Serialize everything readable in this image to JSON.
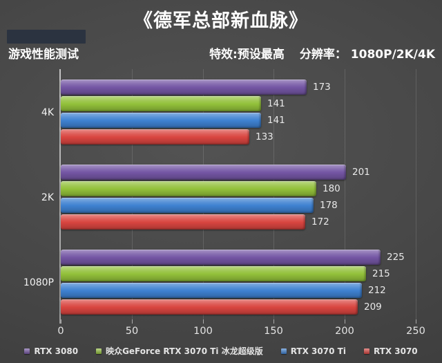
{
  "title": "《德军总部新血脉》",
  "header": {
    "left": "游戏性能测试",
    "effects": "特效:预设最高",
    "resolution": "分辨率： 1080P/2K/4K"
  },
  "chart_data": {
    "type": "bar",
    "orientation": "horizontal",
    "title": "《德军总部新血脉》",
    "categories": [
      "4K",
      "2K",
      "1080P"
    ],
    "series": [
      {
        "name": "RTX 3080",
        "color": "#7456a4",
        "values": [
          173,
          201,
          225
        ]
      },
      {
        "name": "映众GeForce RTX 3070 Ti 冰龙超级版",
        "color": "#92c03a",
        "values": [
          141,
          180,
          215
        ]
      },
      {
        "name": "RTX 3070 Ti",
        "color": "#3e81d1",
        "values": [
          141,
          178,
          212
        ]
      },
      {
        "name": "RTX 3070",
        "color": "#d94540",
        "values": [
          133,
          172,
          209
        ]
      }
    ],
    "xlim": [
      0,
      250
    ],
    "x_ticks": [
      0,
      50,
      100,
      150,
      200,
      250
    ],
    "grid": true,
    "legend_position": "bottom",
    "value_labels": true
  },
  "colors": {
    "background": "#474747",
    "text": "#ffffff",
    "axis": "#b8b8b8",
    "redaction_box": "#2b3340"
  }
}
